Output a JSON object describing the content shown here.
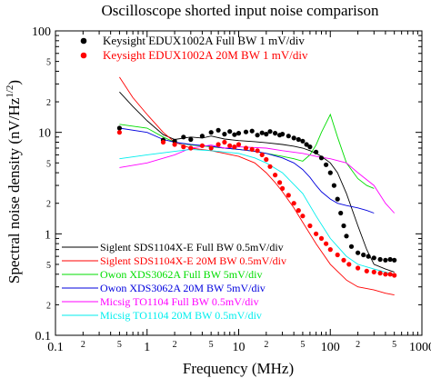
{
  "chart_data": {
    "type": "line",
    "title": "Oscilloscope shorted input noise comparison",
    "xlabel": "Frequency (MHz)",
    "ylabel": "Spectral noise density (nV/Hz",
    "ylabel_exponent": "1/2",
    "ylabel_close": ")",
    "xscale": "log",
    "yscale": "log",
    "xlim": [
      0.1,
      1000
    ],
    "ylim": [
      0.1,
      100
    ],
    "grid": false,
    "x_major_ticks": [
      {
        "v": 0.1,
        "label": "0.1"
      },
      {
        "v": 1,
        "label": "1"
      },
      {
        "v": 10,
        "label": "10"
      },
      {
        "v": 100,
        "label": "100"
      },
      {
        "v": 1000,
        "label": "1000"
      }
    ],
    "x_minor_labels": [
      {
        "v": 0.2,
        "label": "2"
      },
      {
        "v": 0.5,
        "label": "5"
      },
      {
        "v": 2,
        "label": "2"
      },
      {
        "v": 5,
        "label": "5"
      },
      {
        "v": 20,
        "label": "2"
      },
      {
        "v": 50,
        "label": "5"
      },
      {
        "v": 200,
        "label": "2"
      },
      {
        "v": 500,
        "label": "5"
      }
    ],
    "y_major_ticks": [
      {
        "v": 0.1,
        "label": "0.1"
      },
      {
        "v": 1,
        "label": "1"
      },
      {
        "v": 10,
        "label": "10"
      },
      {
        "v": 100,
        "label": "100"
      }
    ],
    "y_minor_labels": [
      {
        "v": 0.2,
        "label": "2"
      },
      {
        "v": 0.5,
        "label": "5"
      },
      {
        "v": 2,
        "label": "2"
      },
      {
        "v": 5,
        "label": "5"
      },
      {
        "v": 20,
        "label": "2"
      },
      {
        "v": 50,
        "label": "5"
      }
    ],
    "legend_top": "top-left",
    "legend_bottom": "bottom-left",
    "series": [
      {
        "name": "Keysight EDUX1002A Full BW 1 mV/div",
        "style": "markers",
        "color": "#000000",
        "legend": "top",
        "x": [
          0.5,
          1.5,
          2,
          2.5,
          3,
          4,
          5,
          6,
          7,
          8,
          9,
          10,
          12,
          14,
          16,
          18,
          20,
          22,
          25,
          28,
          30,
          35,
          40,
          45,
          50,
          55,
          60,
          70,
          80,
          90,
          100,
          110,
          120,
          130,
          140,
          150,
          170,
          200,
          230,
          260,
          300,
          350,
          400,
          450,
          500
        ],
        "y": [
          11,
          8.4,
          8.2,
          9.0,
          8.5,
          9.2,
          10,
          10.5,
          9.6,
          10.2,
          9.5,
          9.8,
          10.1,
          10.3,
          9.4,
          9.9,
          9.6,
          10.2,
          9.8,
          9.4,
          9.6,
          9.2,
          8.8,
          8.5,
          8.2,
          7.6,
          7.2,
          6.4,
          5.6,
          4.8,
          4.0,
          3.0,
          2.2,
          1.6,
          1.2,
          0.95,
          0.75,
          0.65,
          0.62,
          0.6,
          0.58,
          0.56,
          0.55,
          0.56,
          0.55
        ]
      },
      {
        "name": "Keysight EDUX1002A 20M BW 1 mV/div",
        "style": "markers",
        "color": "#ff0000",
        "legend": "top",
        "x": [
          0.5,
          1.5,
          2,
          2.5,
          3,
          4,
          5,
          6,
          7,
          8,
          9,
          10,
          12,
          14,
          16,
          18,
          20,
          22,
          25,
          28,
          30,
          35,
          40,
          45,
          50,
          60,
          70,
          80,
          90,
          100,
          120,
          140,
          160,
          200,
          250,
          300,
          350,
          400,
          450,
          500
        ],
        "y": [
          10,
          8.0,
          7.6,
          7.2,
          7.0,
          7.4,
          7.0,
          7.6,
          8.0,
          7.4,
          7.2,
          7.6,
          7.0,
          6.8,
          6.6,
          6.0,
          5.4,
          4.6,
          3.8,
          3.2,
          2.8,
          2.4,
          2.0,
          1.7,
          1.5,
          1.2,
          1.0,
          0.9,
          0.8,
          0.7,
          0.62,
          0.55,
          0.5,
          0.46,
          0.43,
          0.42,
          0.41,
          0.4,
          0.4,
          0.39
        ]
      },
      {
        "name": "Siglent SDS1104X-E Full BW 0.5mV/div",
        "style": "line",
        "color": "#000000",
        "legend": "bottom",
        "x": [
          0.5,
          0.7,
          1,
          1.5,
          2,
          3,
          4,
          5,
          7,
          10,
          15,
          20,
          30,
          40,
          50,
          60,
          70,
          80,
          100,
          120,
          150,
          200,
          250,
          300,
          400,
          500
        ],
        "y": [
          25,
          18,
          13,
          9.5,
          8.5,
          9.0,
          8.8,
          9.2,
          8.6,
          8.3,
          8.1,
          7.9,
          7.6,
          7.3,
          7.0,
          6.6,
          6.2,
          5.8,
          5.0,
          4.0,
          2.5,
          1.2,
          0.7,
          0.5,
          0.45,
          0.42
        ]
      },
      {
        "name": "Siglent SDS1104X-E 20M BW 0.5mV/div",
        "style": "line",
        "color": "#ff0000",
        "legend": "bottom",
        "x": [
          0.5,
          0.7,
          1,
          1.5,
          2,
          3,
          5,
          7,
          10,
          15,
          20,
          25,
          30,
          40,
          50,
          70,
          100,
          150,
          200,
          300,
          400,
          500
        ],
        "y": [
          35,
          22,
          15,
          10,
          8.0,
          7.0,
          6.6,
          6.2,
          5.8,
          5.0,
          4.0,
          3.2,
          2.6,
          1.8,
          1.3,
          0.8,
          0.5,
          0.35,
          0.3,
          0.28,
          0.26,
          0.25
        ]
      },
      {
        "name": "Owon XDS3062A Full BW 5mV/div",
        "style": "line",
        "color": "#00dd00",
        "legend": "bottom",
        "x": [
          0.5,
          1,
          1.5,
          2,
          3,
          5,
          7,
          10,
          15,
          20,
          30,
          40,
          50,
          60,
          70,
          80,
          100,
          120,
          150,
          200,
          250,
          300
        ],
        "y": [
          12,
          11,
          9.0,
          8.0,
          7.5,
          7.2,
          7.0,
          6.8,
          6.5,
          6.2,
          5.8,
          5.5,
          5.2,
          6.0,
          7.5,
          10,
          15,
          9,
          5,
          3.5,
          3.0,
          2.8
        ]
      },
      {
        "name": "Owon XDS3062A 20M BW 5mV/div",
        "style": "line",
        "color": "#0000dd",
        "legend": "bottom",
        "x": [
          0.5,
          1,
          1.5,
          2,
          3,
          5,
          7,
          10,
          15,
          20,
          30,
          40,
          50,
          60,
          70,
          80,
          100,
          120,
          150,
          200,
          250,
          300
        ],
        "y": [
          11,
          10,
          8.5,
          8.0,
          7.6,
          7.3,
          7.0,
          6.8,
          6.5,
          6.2,
          5.6,
          5.0,
          4.3,
          3.6,
          3.0,
          2.6,
          2.2,
          2.0,
          1.9,
          1.8,
          1.7,
          1.6
        ]
      },
      {
        "name": "Micsig TO1104 Full BW 0.5mV/div",
        "style": "line",
        "color": "#ff00ff",
        "legend": "bottom",
        "x": [
          0.5,
          1,
          2,
          3,
          5,
          7,
          10,
          20,
          30,
          50,
          70,
          100,
          150,
          200,
          300,
          400,
          500
        ],
        "y": [
          4.5,
          5.0,
          6.0,
          7.0,
          7.5,
          7.0,
          7.2,
          7.0,
          6.6,
          6.2,
          5.8,
          5.5,
          5.0,
          4.0,
          3.0,
          2.0,
          1.6
        ]
      },
      {
        "name": "Micsig TO1104 20M BW 0.5mV/div",
        "style": "line",
        "color": "#00eeee",
        "legend": "bottom",
        "x": [
          0.5,
          1,
          2,
          3,
          5,
          7,
          10,
          15,
          20,
          30,
          50,
          70,
          100,
          150,
          200,
          300,
          400,
          500
        ],
        "y": [
          5.5,
          6.0,
          6.5,
          6.8,
          6.6,
          6.4,
          6.2,
          5.6,
          5.0,
          4.0,
          2.5,
          1.5,
          0.9,
          0.6,
          0.5,
          0.45,
          0.42,
          0.4
        ]
      }
    ]
  }
}
